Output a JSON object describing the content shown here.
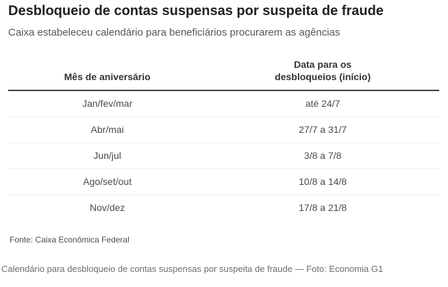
{
  "page": {
    "title": "Desbloqueio de contas suspensas por suspeita de fraude",
    "subtitle": "Caixa estabeleceu calendário para beneficiários procurarem as agências",
    "source_note": "Fonte: Caixa Econômica Federal",
    "caption": "Calendário para desbloqueio de contas suspensas por suspeita de fraude — Foto: Economia G1"
  },
  "chart_data": {
    "type": "table",
    "title": "Desbloqueio de contas suspensas por suspeita de fraude",
    "subtitle": "Caixa estabeleceu calendário para beneficiários procurarem as agências",
    "columns": [
      "Mês de aniversário",
      "Data para os desbloqueios (início)"
    ],
    "rows": [
      [
        "Jan/fev/mar",
        "até 24/7"
      ],
      [
        "Abr/mai",
        "27/7 a 31/7"
      ],
      [
        "Jun/jul",
        "3/8 a 7/8"
      ],
      [
        "Ago/set/out",
        "10/8 a 14/8"
      ],
      [
        "Nov/dez",
        "17/8 a 21/8"
      ]
    ],
    "source": "Fonte: Caixa Econômica Federal"
  },
  "colors": {
    "background": "#ffffff",
    "title_text": "#212121",
    "subtitle_text": "#555555",
    "header_text": "#333333",
    "row_text": "#4a4a4a",
    "header_rule": "#3a3a3a",
    "row_divider": "#ececec",
    "source_text": "#4d4d4d",
    "caption_text": "#6d6d6d"
  }
}
